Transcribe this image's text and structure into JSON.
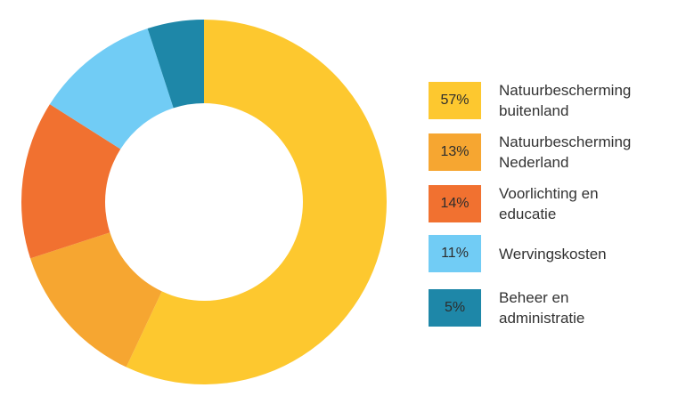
{
  "chart_data": {
    "type": "pie",
    "variant": "donut",
    "title": "",
    "categories": [
      "Natuurbescherming buitenland",
      "Natuurbescherming Nederland",
      "Voorlichting en educatie",
      "Wervingskosten",
      "Beheer en administratie"
    ],
    "values": [
      57,
      13,
      14,
      11,
      5
    ],
    "value_labels": [
      "57%",
      "13%",
      "14%",
      "11%",
      "5%"
    ],
    "colors": [
      "#FDC82F",
      "#F6A631",
      "#F17130",
      "#71CCF5",
      "#1E87A8"
    ],
    "legend_placement": "right"
  },
  "legend": {
    "items": [
      {
        "value": "57%",
        "label": "Natuurbescherming\nbuitenland"
      },
      {
        "value": "13%",
        "label": "Natuurbescherming\nNederland"
      },
      {
        "value": "14%",
        "label": "Voorlichting en\neducatie"
      },
      {
        "value": "11%",
        "label": "Wervingskosten"
      },
      {
        "value": "5%",
        "label": "Beheer en\nadministratie"
      }
    ]
  }
}
